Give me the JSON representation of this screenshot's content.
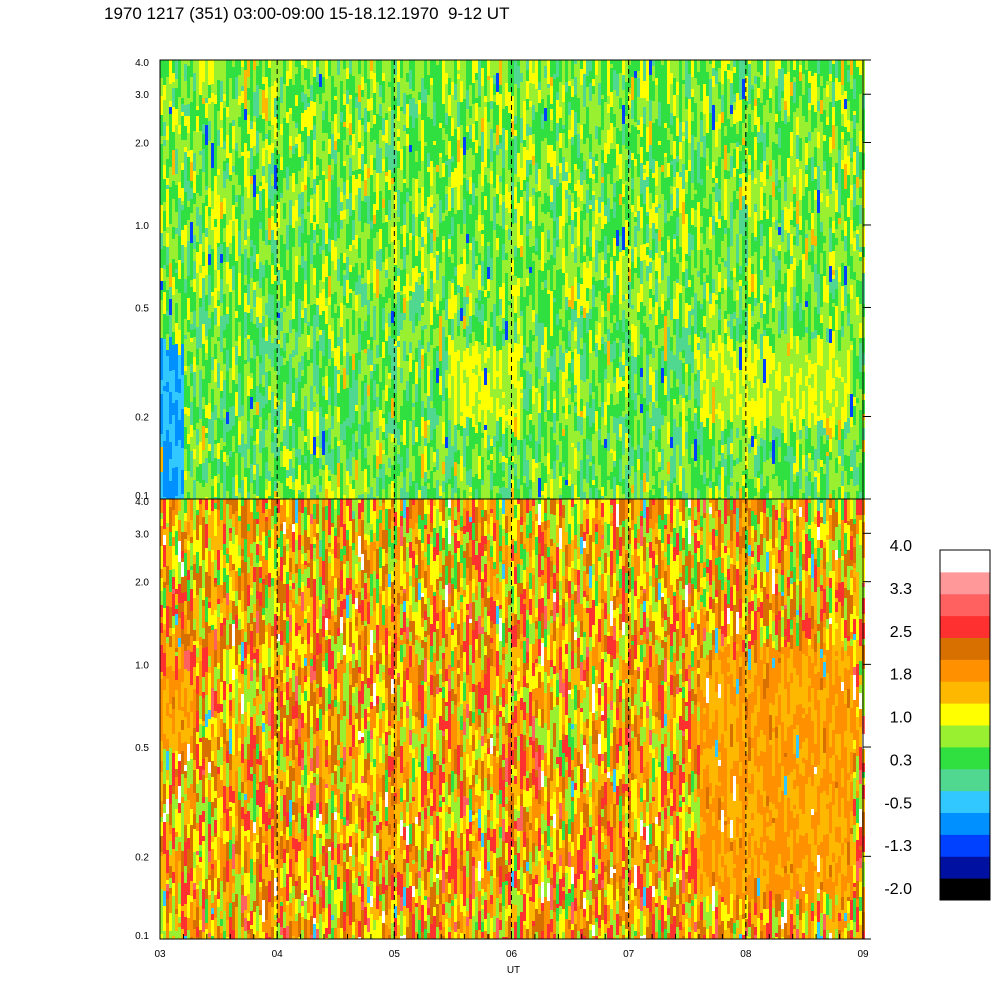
{
  "title": "1970 1217 (351) 03:00-09:00 15-18.12.1970  9-12 UT",
  "chart_data": [
    {
      "type": "heatmap",
      "panel": "top",
      "xlabel": "",
      "ylabel": "",
      "ylim": [
        0.1,
        4.0
      ],
      "yscale": "log",
      "yticks": [
        "0.1",
        "0.2",
        "0.5",
        "1.0",
        "2.0",
        "3.0",
        "4.0"
      ],
      "xlim": [
        3,
        9
      ],
      "xticks": [],
      "vertical_dashed_lines_at": [
        4,
        5,
        6,
        7,
        8
      ],
      "dominant_level_range": [
        0.3,
        1.0
      ],
      "features": [
        {
          "x_from": 5.45,
          "x_to": 6.05,
          "y_from": 0.2,
          "y_to": 0.4,
          "level": 1.0
        },
        {
          "x_from": 7.6,
          "x_to": 8.9,
          "y_from": 0.2,
          "y_to": 0.4,
          "level": 1.0
        },
        {
          "x_from": 3.0,
          "x_to": 3.2,
          "y_from": 0.1,
          "y_to": 0.4,
          "level": -0.5
        }
      ]
    },
    {
      "type": "heatmap",
      "panel": "bottom",
      "xlabel": "UT",
      "ylabel": "",
      "ylim": [
        0.1,
        4.0
      ],
      "yscale": "log",
      "yticks": [
        "0.1",
        "0.2",
        "0.5",
        "1.0",
        "2.0",
        "3.0",
        "4.0"
      ],
      "xlim": [
        3,
        9
      ],
      "xticks": [
        "03",
        "04",
        "05",
        "06",
        "07",
        "08",
        "09"
      ],
      "vertical_dashed_lines_at": [
        4,
        5,
        6,
        7,
        8
      ],
      "dominant_level_range": [
        1.0,
        2.5
      ],
      "features": [
        {
          "x_from": 7.6,
          "x_to": 8.9,
          "y_from": 0.15,
          "y_to": 1.2,
          "level": 1.8
        },
        {
          "x_from": 3.0,
          "x_to": 3.3,
          "y_from": 0.5,
          "y_to": 1.0,
          "level": 1.8
        }
      ]
    }
  ],
  "colorbar": {
    "labels": [
      "4.0",
      "3.3",
      "2.5",
      "1.8",
      "1.0",
      "0.3",
      "-0.5",
      "-1.3",
      "-2.0"
    ],
    "min": -2.0,
    "max": 4.0,
    "colors": [
      "#000000",
      "#0010a0",
      "#0040ff",
      "#0090ff",
      "#30c8ff",
      "#50d890",
      "#30e040",
      "#98f030",
      "#ffff00",
      "#ffb800",
      "#ff9000",
      "#d87000",
      "#ff3030",
      "#ff6060",
      "#ff9898",
      "#ffffff"
    ]
  }
}
